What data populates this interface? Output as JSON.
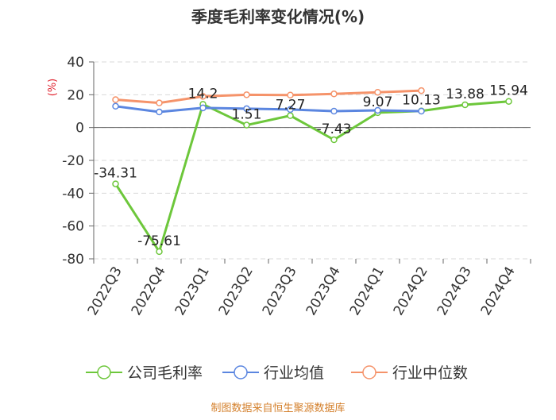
{
  "chart_data": {
    "type": "line",
    "title": "季度毛利率变化情况(%)",
    "ylabel": "(%)",
    "xlabel": "",
    "ylim": [
      -80,
      40
    ],
    "yticks": [
      40,
      20,
      0,
      -20,
      -40,
      -60,
      -80
    ],
    "categories": [
      "2022Q3",
      "2022Q4",
      "2023Q1",
      "2023Q2",
      "2023Q3",
      "2023Q4",
      "2024Q1",
      "2024Q2",
      "2024Q3",
      "2024Q4"
    ],
    "grid": true,
    "legend_position": "bottom",
    "series": [
      {
        "name": "公司毛利率",
        "color": "#6dc73b",
        "values": [
          -34.31,
          -75.61,
          14.2,
          1.51,
          7.27,
          -7.43,
          9.07,
          10.13,
          13.88,
          15.94
        ],
        "labels": [
          "-34.31",
          "-75.61",
          "14.2",
          "1.51",
          "7.27",
          "-7.43",
          "9.07",
          "10.13",
          "13.88",
          "15.94"
        ]
      },
      {
        "name": "行业均值",
        "color": "#5b86e0",
        "values": [
          13.0,
          9.5,
          12.0,
          11.5,
          11.0,
          10.0,
          10.5,
          10.0,
          null,
          null
        ]
      },
      {
        "name": "行业中位数",
        "color": "#f5936a",
        "values": [
          17.0,
          15.0,
          19.0,
          20.0,
          19.8,
          20.5,
          21.5,
          22.5,
          null,
          null
        ]
      }
    ]
  },
  "footer": {
    "source": "制图数据来自恒生聚源数据库"
  }
}
